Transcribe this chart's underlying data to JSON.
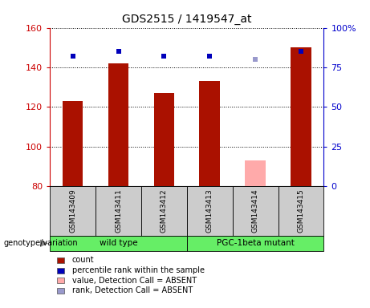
{
  "title": "GDS2515 / 1419547_at",
  "samples": [
    "GSM143409",
    "GSM143411",
    "GSM143412",
    "GSM143413",
    "GSM143414",
    "GSM143415"
  ],
  "count_values": [
    123,
    142,
    127,
    133,
    null,
    150
  ],
  "count_absent_values": [
    null,
    null,
    null,
    null,
    93,
    null
  ],
  "percentile_values": [
    82,
    85,
    82,
    82,
    null,
    85
  ],
  "percentile_absent_values": [
    null,
    null,
    null,
    null,
    80,
    null
  ],
  "ylim_left": [
    80,
    160
  ],
  "ylim_right": [
    0,
    100
  ],
  "yticks_left": [
    80,
    100,
    120,
    140,
    160
  ],
  "yticks_right": [
    0,
    25,
    50,
    75,
    100
  ],
  "ytick_labels_right": [
    "0",
    "25",
    "50",
    "75",
    "100%"
  ],
  "bar_color": "#AA1100",
  "bar_absent_color": "#FFAAAA",
  "marker_color": "#0000BB",
  "marker_absent_color": "#9999CC",
  "wild_type_indices": [
    0,
    1,
    2
  ],
  "mutant_indices": [
    3,
    4,
    5
  ],
  "group_color": "#66EE66",
  "sample_box_color": "#CCCCCC",
  "genotype_label": "genotype/variation",
  "legend_items": [
    {
      "label": "count",
      "color": "#AA1100"
    },
    {
      "label": "percentile rank within the sample",
      "color": "#0000BB"
    },
    {
      "label": "value, Detection Call = ABSENT",
      "color": "#FFAAAA"
    },
    {
      "label": "rank, Detection Call = ABSENT",
      "color": "#9999CC"
    }
  ]
}
